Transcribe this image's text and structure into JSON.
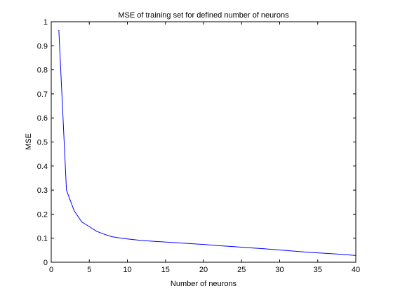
{
  "chart_data": {
    "type": "line",
    "title": "MSE of training set for defined number of neurons",
    "xlabel": "Number of neurons",
    "ylabel": "MSE",
    "xlim": [
      0,
      40
    ],
    "ylim": [
      0,
      1
    ],
    "xticks": [
      0,
      5,
      10,
      15,
      20,
      25,
      30,
      35,
      40
    ],
    "xtick_labels": [
      "0",
      "5",
      "10",
      "15",
      "20",
      "25",
      "30",
      "35",
      "40"
    ],
    "yticks": [
      0,
      0.1,
      0.2,
      0.3,
      0.4,
      0.5,
      0.6,
      0.7,
      0.8,
      0.9,
      1
    ],
    "ytick_labels": [
      "0",
      "0.1",
      "0.2",
      "0.3",
      "0.4",
      "0.5",
      "0.6",
      "0.7",
      "0.8",
      "0.9",
      "1"
    ],
    "grid": false,
    "legend": "none",
    "series": [
      {
        "color": "#0000ff",
        "x": [
          1,
          2,
          3,
          4,
          5,
          6,
          7,
          8,
          9,
          10,
          12,
          14,
          16,
          18,
          20,
          22,
          24,
          26,
          28,
          30,
          32,
          34,
          36,
          38,
          40
        ],
        "y": [
          0.965,
          0.3,
          0.215,
          0.168,
          0.148,
          0.128,
          0.116,
          0.106,
          0.101,
          0.097,
          0.09,
          0.086,
          0.082,
          0.078,
          0.074,
          0.069,
          0.065,
          0.06,
          0.056,
          0.051,
          0.046,
          0.041,
          0.037,
          0.033,
          0.028
        ]
      }
    ]
  }
}
